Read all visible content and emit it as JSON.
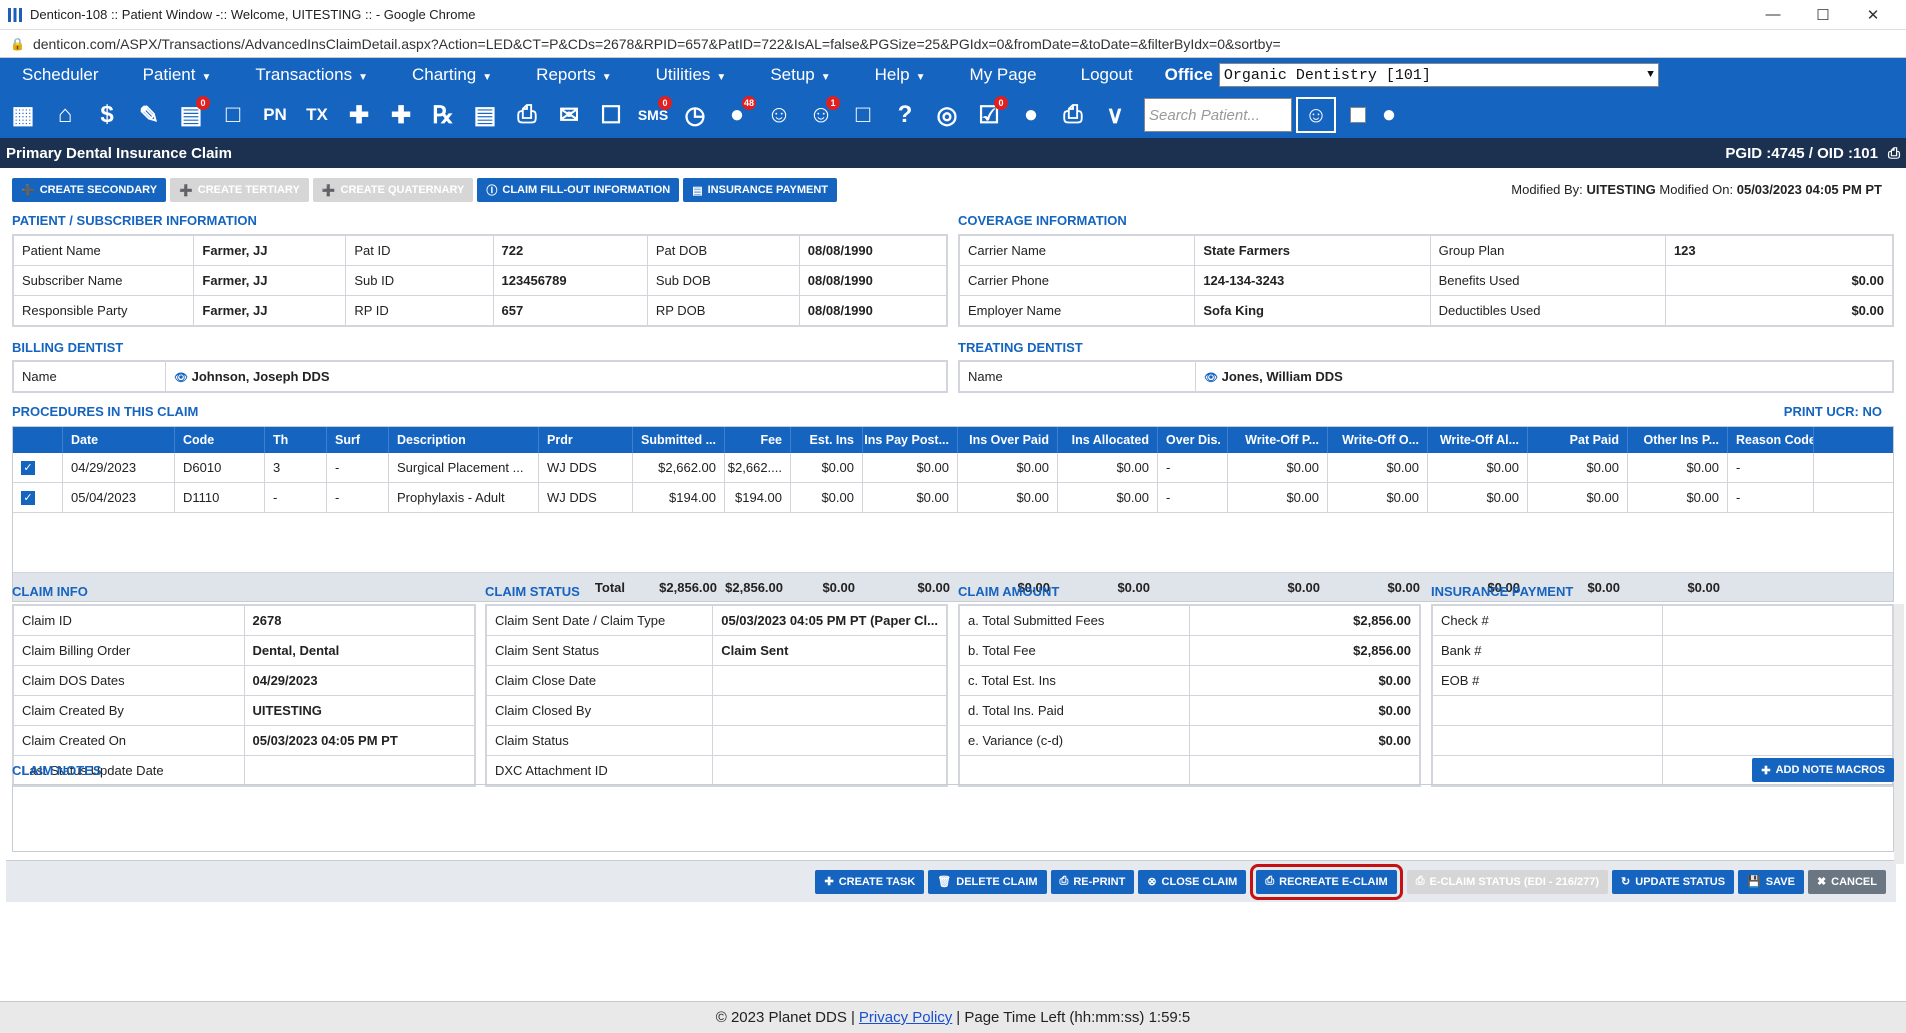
{
  "window": {
    "title": "Denticon-108 :: Patient Window -:: Welcome, UITESTING :: - Google Chrome",
    "url": "denticon.com/ASPX/Transactions/AdvancedInsClaimDetail.aspx?Action=LED&CT=P&CDs=2678&RPID=657&PatID=722&IsAL=false&PGSize=25&PGIdx=0&fromDate=&toDate=&filterByIdx=0&sortby="
  },
  "nav": {
    "items": [
      "Scheduler",
      "Patient",
      "Transactions",
      "Charting",
      "Reports",
      "Utilities",
      "Setup",
      "Help",
      "My Page",
      "Logout"
    ],
    "office_label": "Office",
    "office_value": "Organic Dentistry [101]"
  },
  "iconbar": {
    "search_placeholder": "Search Patient...",
    "badges": {
      "tooth_counter": "0",
      "sms": "0",
      "people": "48",
      "ear": "1",
      "check_doc": "0"
    }
  },
  "header": {
    "title": "Primary Dental Insurance Claim",
    "ids": "PGID :4745  /  OID :101"
  },
  "topbuttons": {
    "create_secondary": "CREATE SECONDARY",
    "create_tertiary": "CREATE TERTIARY",
    "create_quaternary": "CREATE QUATERNARY",
    "claim_fillout": "CLAIM FILL-OUT INFORMATION",
    "insurance_payment": "INSURANCE PAYMENT"
  },
  "modified": {
    "by_label": "Modified By:",
    "by": "UITESTING",
    "on_label": "Modified On:",
    "on": "05/03/2023 04:05 PM PT"
  },
  "patient": {
    "section": "PATIENT / SUBSCRIBER INFORMATION",
    "rows": [
      [
        "Patient Name",
        "Farmer, JJ",
        "Pat ID",
        "722",
        "Pat DOB",
        "08/08/1990"
      ],
      [
        "Subscriber Name",
        "Farmer, JJ",
        "Sub ID",
        "123456789",
        "Sub DOB",
        "08/08/1990"
      ],
      [
        "Responsible Party",
        "Farmer, JJ",
        "RP ID",
        "657",
        "RP DOB",
        "08/08/1990"
      ]
    ]
  },
  "coverage": {
    "section": "COVERAGE INFORMATION",
    "rows": [
      [
        "Carrier Name",
        "State Farmers",
        "Group Plan",
        "123"
      ],
      [
        "Carrier Phone",
        "124-134-3243",
        "Benefits Used",
        "$0.00"
      ],
      [
        "Employer Name",
        "Sofa King",
        "Deductibles Used",
        "$0.00"
      ]
    ]
  },
  "billing": {
    "section": "BILLING DENTIST",
    "label": "Name",
    "value": "Johnson, Joseph DDS"
  },
  "treating": {
    "section": "TREATING DENTIST",
    "label": "Name",
    "value": "Jones, William DDS"
  },
  "procedures": {
    "section": "PROCEDURES IN THIS CLAIM",
    "print_ucr": "PRINT UCR: NO",
    "columns": [
      "Date",
      "Code",
      "Th",
      "Surf",
      "Description",
      "Prdr",
      "Submitted ...",
      "Fee",
      "Est. Ins",
      "Ins Pay Post...",
      "Ins Over Paid",
      "Ins Allocated",
      "Over Dis.",
      "Write-Off P...",
      "Write-Off O...",
      "Write-Off Al...",
      "Pat Paid",
      "Other Ins P...",
      "Reason Code"
    ],
    "rows": [
      [
        "04/29/2023",
        "D6010",
        "3",
        "-",
        "Surgical Placement ...",
        "WJ DDS",
        "$2,662.00",
        "$2,662....",
        "$0.00",
        "$0.00",
        "$0.00",
        "$0.00",
        "-",
        "$0.00",
        "$0.00",
        "$0.00",
        "$0.00",
        "$0.00",
        "-"
      ],
      [
        "05/04/2023",
        "D1110",
        "-",
        "-",
        "Prophylaxis - Adult",
        "WJ DDS",
        "$194.00",
        "$194.00",
        "$0.00",
        "$0.00",
        "$0.00",
        "$0.00",
        "-",
        "$0.00",
        "$0.00",
        "$0.00",
        "$0.00",
        "$0.00",
        "-"
      ]
    ],
    "total_label": "Total",
    "totals": [
      "$2,856.00",
      "$2,856.00",
      "$0.00",
      "$0.00",
      "$0.00",
      "$0.00",
      "",
      "$0.00",
      "$0.00",
      "$0.00",
      "$0.00",
      "$0.00"
    ]
  },
  "claim_info": {
    "section": "CLAIM INFO",
    "rows": [
      [
        "Claim ID",
        "2678"
      ],
      [
        "Claim Billing Order",
        "Dental, Dental"
      ],
      [
        "Claim DOS Dates",
        "04/29/2023"
      ],
      [
        "Claim Created By",
        "UITESTING"
      ],
      [
        "Claim Created On",
        "05/03/2023 04:05 PM PT"
      ],
      [
        "Last Status Update Date",
        ""
      ]
    ]
  },
  "claim_status": {
    "section": "CLAIM STATUS",
    "rows": [
      [
        "Claim Sent Date / Claim Type",
        "05/03/2023 04:05 PM PT (Paper Cl..."
      ],
      [
        "Claim Sent Status",
        "Claim Sent"
      ],
      [
        "Claim Close Date",
        ""
      ],
      [
        "Claim Closed By",
        ""
      ],
      [
        "Claim Status",
        ""
      ],
      [
        "DXC Attachment ID",
        ""
      ]
    ]
  },
  "claim_amount": {
    "section": "CLAIM AMOUNT",
    "rows": [
      [
        "a. Total Submitted Fees",
        "$2,856.00"
      ],
      [
        "b. Total Fee",
        "$2,856.00"
      ],
      [
        "c. Total Est. Ins",
        "$0.00"
      ],
      [
        "d. Total Ins. Paid",
        "$0.00"
      ],
      [
        "e. Variance (c-d)",
        "$0.00"
      ],
      [
        "",
        ""
      ]
    ]
  },
  "insurance_payment": {
    "section": "INSURANCE PAYMENT",
    "rows": [
      [
        "Check #",
        ""
      ],
      [
        "Bank #",
        ""
      ],
      [
        "EOB #",
        ""
      ],
      [
        "",
        ""
      ],
      [
        "",
        ""
      ],
      [
        "",
        ""
      ]
    ]
  },
  "notes": {
    "section": "CLAIM NOTES",
    "add_macros": "ADD NOTE MACROS",
    "text": ""
  },
  "bottom": {
    "create_task": "CREATE TASK",
    "delete_claim": "DELETE CLAIM",
    "reprint": "RE-PRINT",
    "close_claim": "CLOSE CLAIM",
    "recreate_eclaim": "RECREATE E-CLAIM",
    "eclaim_status": "E-CLAIM STATUS (EDI - 216/277)",
    "update_status": "UPDATE STATUS",
    "save": "SAVE",
    "cancel": "CANCEL"
  },
  "footer": {
    "copyright": "© 2023 Planet DDS |",
    "privacy": "Privacy Policy",
    "time": "| Page Time Left (hh:mm:ss) 1:59:5"
  }
}
